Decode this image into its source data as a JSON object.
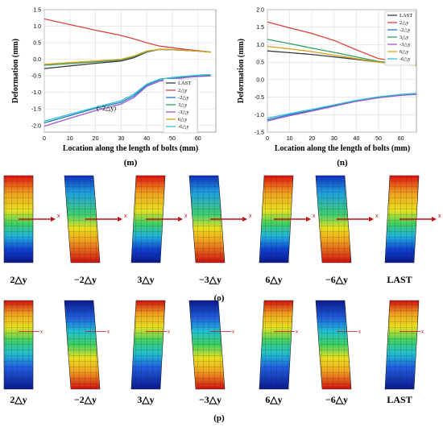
{
  "colors": {
    "LAST": "#3a3a3a",
    "2dy": "#e04040",
    "-2dy": "#1f77d0",
    "3dy": "#2ca060",
    "-3dy": "#9b59c9",
    "6dy": "#d4a017",
    "-6dy": "#2fc5cf"
  },
  "panel_labels": {
    "m": "(m)",
    "n": "(n)",
    "o": "(o)",
    "p": "(p)"
  },
  "chart_data": [
    {
      "type": "line",
      "panel": "m",
      "xlabel": "Location along the length of bolts (mm)",
      "ylabel": "Deformation (mm)",
      "xlim": [
        0,
        67
      ],
      "ylim": [
        -2.2,
        1.5
      ],
      "xticks": [
        "0",
        "10",
        "20",
        "30",
        "40",
        "50",
        "60"
      ],
      "yticks": [
        "-2.0",
        "-1.5",
        "-1.0",
        "-0.5",
        "0.0",
        "0.5",
        "1.0",
        "1.5"
      ],
      "grid": true,
      "legend_position": "right",
      "annotation": "(−2△y)",
      "x": [
        0,
        10,
        20,
        30,
        35,
        40,
        45,
        50,
        55,
        60,
        65
      ],
      "series": [
        {
          "name": "LAST",
          "key": "LAST",
          "values": [
            -0.28,
            -0.2,
            -0.12,
            -0.05,
            0.05,
            0.22,
            0.3,
            0.29,
            0.27,
            0.25,
            0.22
          ]
        },
        {
          "name": "2△y",
          "key": "2dy",
          "values": [
            1.22,
            1.05,
            0.88,
            0.72,
            0.62,
            0.5,
            0.4,
            0.35,
            0.3,
            0.26,
            0.22
          ]
        },
        {
          "name": "-2△y",
          "key": "-2dy",
          "values": [
            -1.92,
            -1.7,
            -1.48,
            -1.3,
            -1.1,
            -0.78,
            -0.62,
            -0.57,
            -0.53,
            -0.5,
            -0.48
          ]
        },
        {
          "name": "3△y",
          "key": "3dy",
          "values": [
            -0.18,
            -0.13,
            -0.08,
            -0.02,
            0.08,
            0.23,
            0.3,
            0.29,
            0.27,
            0.25,
            0.22
          ]
        },
        {
          "name": "-3△y",
          "key": "-3dy",
          "values": [
            -2.02,
            -1.78,
            -1.55,
            -1.35,
            -1.15,
            -0.82,
            -0.66,
            -0.6,
            -0.55,
            -0.52,
            -0.5
          ]
        },
        {
          "name": "6△y",
          "key": "6dy",
          "values": [
            -0.15,
            -0.1,
            -0.05,
            0.0,
            0.1,
            0.25,
            0.3,
            0.29,
            0.27,
            0.25,
            0.22
          ]
        },
        {
          "name": "-6△y",
          "key": "-6dy",
          "values": [
            -1.87,
            -1.66,
            -1.45,
            -1.25,
            -1.05,
            -0.75,
            -0.6,
            -0.55,
            -0.51,
            -0.48,
            -0.46
          ]
        }
      ]
    },
    {
      "type": "line",
      "panel": "n",
      "xlabel": "Location along the length of bolts (mm)",
      "ylabel": "Deformation (mm)",
      "xlim": [
        0,
        67
      ],
      "ylim": [
        -1.5,
        2.0
      ],
      "xticks": [
        "0",
        "10",
        "20",
        "30",
        "40",
        "50",
        "60"
      ],
      "yticks": [
        "-1.5",
        "-1.0",
        "-0.5",
        "0.0",
        "0.5",
        "1.0",
        "1.5",
        "2.0"
      ],
      "grid": true,
      "legend_position": "top-right",
      "x": [
        0,
        10,
        20,
        30,
        40,
        50,
        60,
        67
      ],
      "series": [
        {
          "name": "LAST",
          "key": "LAST",
          "values": [
            0.82,
            0.77,
            0.72,
            0.65,
            0.58,
            0.5,
            0.44,
            0.42
          ]
        },
        {
          "name": "2△y",
          "key": "2dy",
          "values": [
            1.65,
            1.48,
            1.32,
            1.12,
            0.85,
            0.6,
            0.5,
            0.48
          ]
        },
        {
          "name": "-2△y",
          "key": "-2dy",
          "values": [
            -1.15,
            -1.0,
            -0.88,
            -0.74,
            -0.6,
            -0.5,
            -0.43,
            -0.4
          ]
        },
        {
          "name": "3△y",
          "key": "3dy",
          "values": [
            1.15,
            1.03,
            0.9,
            0.78,
            0.65,
            0.52,
            0.45,
            0.42
          ]
        },
        {
          "name": "-3△y",
          "key": "-3dy",
          "values": [
            -1.18,
            -1.03,
            -0.9,
            -0.76,
            -0.62,
            -0.52,
            -0.45,
            -0.42
          ]
        },
        {
          "name": "6△y",
          "key": "6dy",
          "values": [
            0.95,
            0.88,
            0.8,
            0.7,
            0.6,
            0.5,
            0.44,
            0.41
          ]
        },
        {
          "name": "-6△y",
          "key": "-6dy",
          "values": [
            -1.1,
            -0.97,
            -0.85,
            -0.72,
            -0.59,
            -0.49,
            -0.42,
            -0.39
          ]
        }
      ]
    }
  ],
  "fea_o": {
    "captions": [
      "2△y",
      "−2△y",
      "3△y",
      "−3△y",
      "6△y",
      "−6△y",
      "LAST"
    ],
    "axis_letter": "x"
  },
  "fea_p": {
    "captions": [
      "2△y",
      "−2△y",
      "3△y",
      "−3△y",
      "6△y",
      "−6△y",
      "LAST"
    ],
    "axis_letter": "x"
  }
}
